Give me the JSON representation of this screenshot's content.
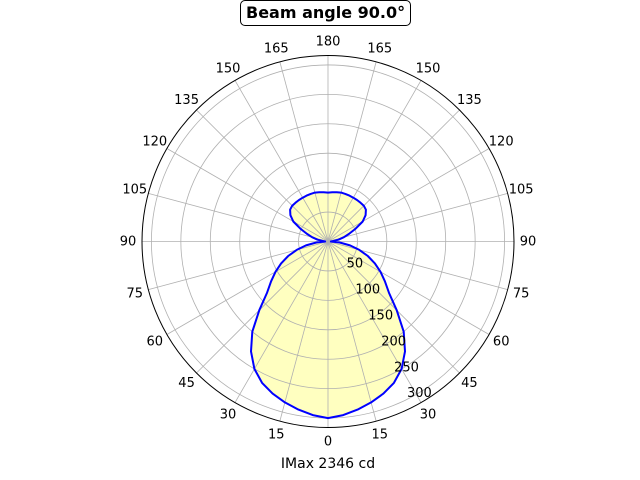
{
  "chart_data": {
    "type": "polar-line",
    "title": "Beam angle 90.0°",
    "xlabel": "IMax 2346 cd",
    "angle_tick_labels": [
      "0",
      "15",
      "30",
      "45",
      "60",
      "75",
      "90",
      "105",
      "120",
      "135",
      "150",
      "165",
      "180",
      "165",
      "150",
      "135",
      "120",
      "105",
      "90",
      "75",
      "60",
      "45",
      "30",
      "15"
    ],
    "radial_tick_labels": [
      "50",
      "100",
      "150",
      "200",
      "250",
      "300"
    ],
    "rlim": [
      0,
      316
    ],
    "grid": true,
    "angle_zero": "bottom",
    "symmetric": true,
    "gamma_deg": [
      0,
      5,
      10,
      15,
      20,
      25,
      30,
      35,
      40,
      45,
      50,
      55,
      60,
      65,
      70,
      75,
      80,
      85,
      90,
      95,
      100,
      105,
      110,
      115,
      120,
      125,
      130,
      135,
      140,
      145,
      150,
      155,
      160,
      165,
      170,
      175,
      180
    ],
    "intensity": [
      300,
      296,
      290,
      283,
      275,
      265,
      250,
      228,
      200,
      165,
      135,
      118,
      103,
      88,
      72,
      55,
      38,
      20,
      5,
      8,
      18,
      28,
      38,
      52,
      68,
      78,
      84,
      86,
      86,
      86,
      86,
      86,
      86,
      86,
      85,
      84,
      83
    ],
    "colors": {
      "line": "#0000ff",
      "fill": "#ffffc0",
      "grid": "#b0b0b0"
    }
  }
}
